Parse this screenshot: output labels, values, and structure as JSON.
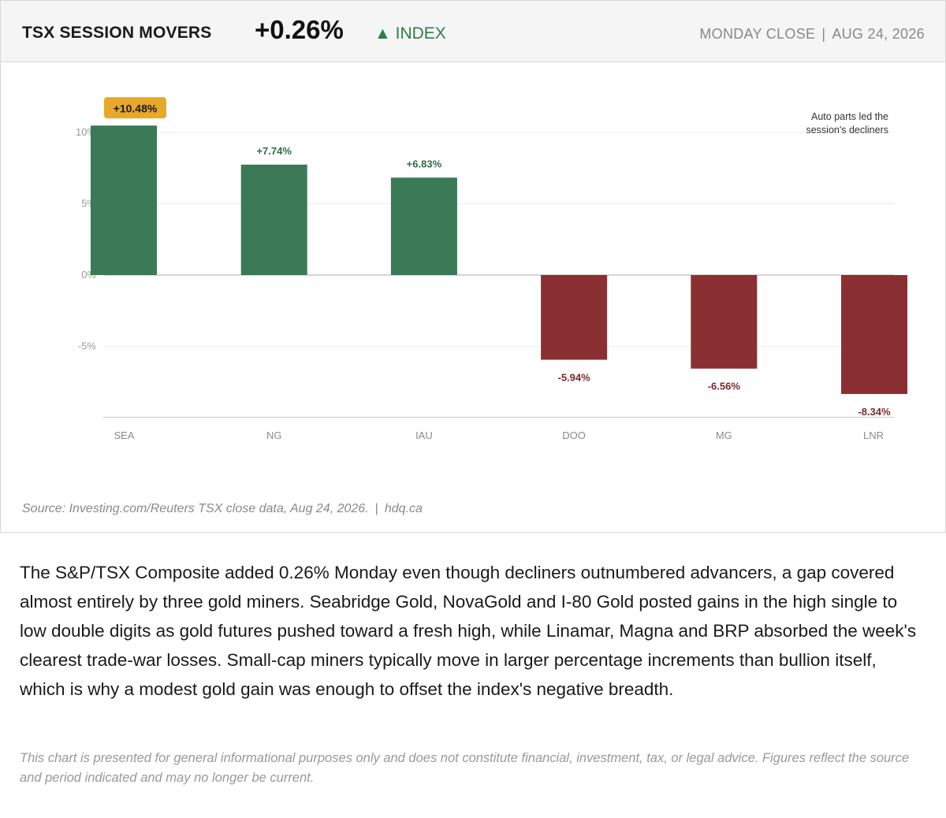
{
  "header": {
    "title": "TSX SESSION MOVERS",
    "index_change": "+0.26%",
    "index_label": "▲ INDEX",
    "session": "MONDAY CLOSE",
    "separator": "|",
    "date": "AUG 24, 2026"
  },
  "chart_data": {
    "type": "bar",
    "categories": [
      "SEA",
      "NG",
      "IAU",
      "DOO",
      "MG",
      "LNR"
    ],
    "values": [
      10.48,
      7.74,
      6.83,
      -5.94,
      -6.56,
      -8.34
    ],
    "value_labels": [
      "+10.48%",
      "+7.74%",
      "+6.83%",
      "-5.94%",
      "-6.56%",
      "-8.34%"
    ],
    "highlighted_label_index": 0,
    "yticks": [
      10,
      5,
      0,
      -5
    ],
    "ytick_labels": [
      "10%",
      "5%",
      "0%",
      "-5%"
    ],
    "ylim": [
      -10,
      11.5
    ],
    "grid": true,
    "annotation": [
      "Auto parts led the",
      "session's decliners"
    ],
    "colors": {
      "positive": "#3a7a56",
      "negative": "#8b3032",
      "highlight": "#e8a82a",
      "positive_text": "#2f6e45",
      "negative_text": "#7a2a2c"
    }
  },
  "source": {
    "text": "Source: Investing.com/Reuters TSX close data, Aug 24, 2026.",
    "separator": "|",
    "site": "hdq.ca"
  },
  "body": "The S&P/TSX Composite added 0.26% Monday even though decliners outnumbered advancers, a gap covered almost entirely by three gold miners. Seabridge Gold, NovaGold and I-80 Gold posted gains in the high single to low double digits as gold futures pushed toward a fresh high, while Linamar, Magna and BRP absorbed the week's clearest trade-war losses. Small-cap miners typically move in larger percentage increments than bullion itself, which is why a modest gold gain was enough to offset the index's negative breadth.",
  "disclaimer": "This chart is presented for general informational purposes only and does not constitute financial, investment, tax, or legal advice. Figures reflect the source and period indicated and may no longer be current."
}
